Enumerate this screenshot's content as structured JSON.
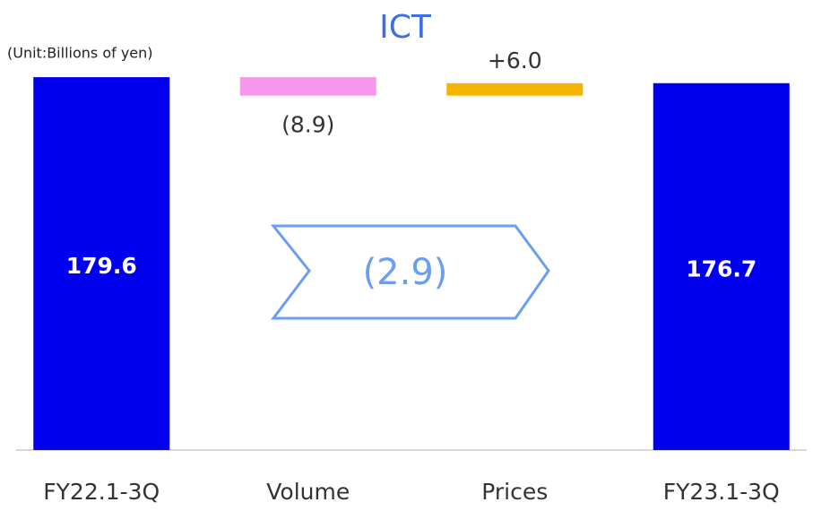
{
  "chart_data": {
    "type": "waterfall",
    "title": "ICT",
    "subtitle": "(Unit:Billions of yen)",
    "categories": [
      "FY22.1-3Q",
      "Volume",
      "Prices",
      "FY23.1-3Q"
    ],
    "values": [
      179.6,
      -8.9,
      6.0,
      176.7
    ],
    "value_labels": [
      "179.6",
      "(8.9)",
      "+6.0",
      "176.7"
    ],
    "kinds": [
      "total",
      "delta",
      "delta",
      "total"
    ],
    "colors": [
      "#0000ee",
      "#f797ec",
      "#f5b400",
      "#0000ee"
    ],
    "ylim": [
      0,
      190
    ],
    "annotation": "(2.9)"
  }
}
